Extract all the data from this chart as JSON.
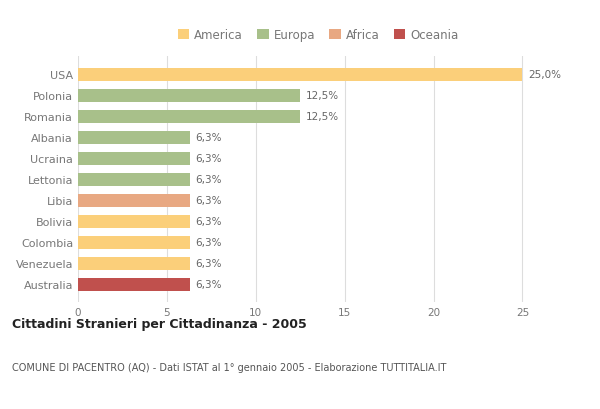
{
  "categories": [
    "USA",
    "Polonia",
    "Romania",
    "Albania",
    "Ucraina",
    "Lettonia",
    "Libia",
    "Bolivia",
    "Colombia",
    "Venezuela",
    "Australia"
  ],
  "values": [
    25.0,
    12.5,
    12.5,
    6.3,
    6.3,
    6.3,
    6.3,
    6.3,
    6.3,
    6.3,
    6.3
  ],
  "bar_colors": [
    "#FBCF7A",
    "#A8C08A",
    "#A8C08A",
    "#A8C08A",
    "#A8C08A",
    "#A8C08A",
    "#E8A882",
    "#FBCF7A",
    "#FBCF7A",
    "#FBCF7A",
    "#C0504D"
  ],
  "labels": [
    "25,0%",
    "12,5%",
    "12,5%",
    "6,3%",
    "6,3%",
    "6,3%",
    "6,3%",
    "6,3%",
    "6,3%",
    "6,3%",
    "6,3%"
  ],
  "legend_labels": [
    "America",
    "Europa",
    "Africa",
    "Oceania"
  ],
  "legend_colors": [
    "#FBCF7A",
    "#A8C08A",
    "#E8A882",
    "#C0504D"
  ],
  "title": "Cittadini Stranieri per Cittadinanza - 2005",
  "subtitle": "COMUNE DI PACENTRO (AQ) - Dati ISTAT al 1° gennaio 2005 - Elaborazione TUTTITALIA.IT",
  "xlim": [
    0,
    27
  ],
  "xticks": [
    0,
    5,
    10,
    15,
    20,
    25
  ],
  "background_color": "#FFFFFF",
  "grid_color": "#DDDDDD",
  "text_color": "#777777",
  "bar_text_color": "#666666",
  "title_color": "#222222",
  "subtitle_color": "#555555"
}
